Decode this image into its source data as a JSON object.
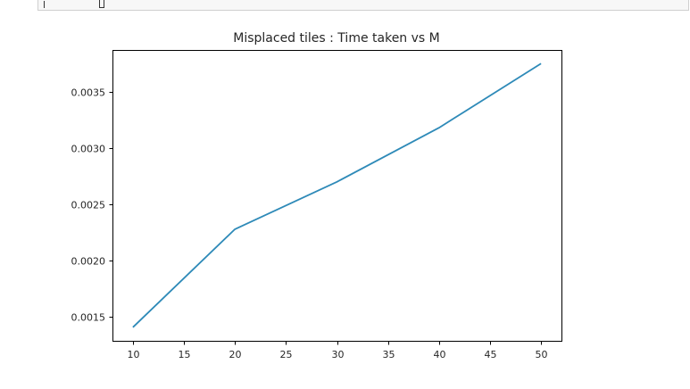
{
  "chart_data": {
    "type": "line",
    "title": "Misplaced tiles : Time taken vs M",
    "xlabel": "",
    "ylabel": "",
    "x": [
      10,
      20,
      30,
      40,
      50
    ],
    "series": [
      {
        "values": [
          0.00141,
          0.00228,
          0.0027,
          0.00318,
          0.00375
        ],
        "color": "#2e8ab8"
      }
    ],
    "xticks": [
      10,
      15,
      20,
      25,
      30,
      35,
      40,
      45,
      50
    ],
    "xtick_labels": [
      "10",
      "15",
      "20",
      "25",
      "30",
      "35",
      "40",
      "45",
      "50"
    ],
    "yticks": [
      0.0015,
      0.002,
      0.0025,
      0.003,
      0.0035
    ],
    "ytick_labels": [
      "0.0015",
      "0.0020",
      "0.0025",
      "0.0030",
      "0.0035"
    ],
    "xlim": [
      8,
      52
    ],
    "ylim": [
      0.00129,
      0.00387
    ],
    "grid": false,
    "legend": "none"
  }
}
